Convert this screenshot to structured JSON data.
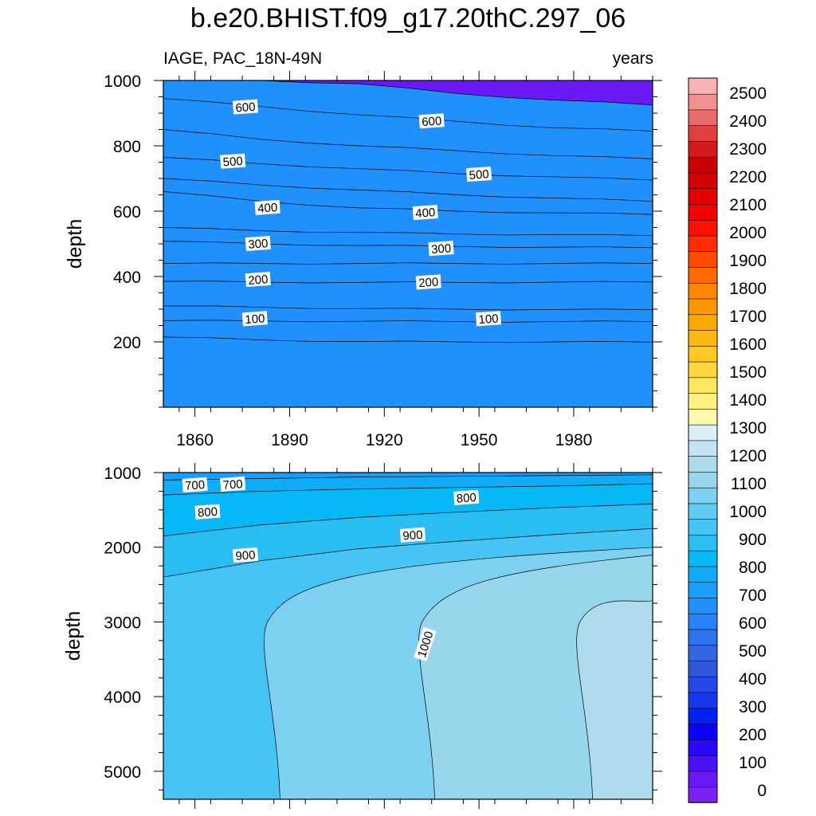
{
  "title": "b.e20.BHIST.f09_g17.20thC.297_06",
  "left_string": "IAGE, PAC_18N-49N",
  "right_string": "years",
  "chart_data": [
    {
      "type": "heatmap",
      "panel": "upper",
      "xlabel": "",
      "ylabel": "depth",
      "x_ticks": [
        1860,
        1890,
        1920,
        1950,
        1980
      ],
      "xlim": [
        1850,
        2005
      ],
      "y_ticks": [
        200,
        400,
        600,
        800,
        1000
      ],
      "ylim": [
        1000,
        0
      ],
      "contours": [
        {
          "level": 50,
          "depth": [
            215,
            206,
            201,
            200,
            200,
            199
          ]
        },
        {
          "level": 100,
          "depth": [
            265,
            264,
            263,
            262,
            262,
            262
          ]
        },
        {
          "level": 150,
          "depth": [
            310,
            306,
            302,
            300,
            299,
            298
          ]
        },
        {
          "level": 200,
          "depth": [
            385,
            383,
            382,
            382,
            383,
            383
          ]
        },
        {
          "level": 250,
          "depth": [
            440,
            440,
            440,
            440,
            440,
            440
          ]
        },
        {
          "level": 300,
          "depth": [
            508,
            500,
            495,
            492,
            490,
            488
          ]
        },
        {
          "level": 350,
          "depth": [
            550,
            540,
            535,
            530,
            528,
            525
          ]
        },
        {
          "level": 400,
          "depth": [
            660,
            630,
            610,
            600,
            595,
            590
          ]
        },
        {
          "level": 450,
          "depth": [
            700,
            680,
            665,
            650,
            640,
            630
          ]
        },
        {
          "level": 500,
          "depth": [
            765,
            745,
            730,
            715,
            705,
            695
          ]
        },
        {
          "level": 550,
          "depth": [
            850,
            820,
            800,
            785,
            770,
            760
          ]
        },
        {
          "level": 600,
          "depth": [
            945,
            920,
            895,
            875,
            855,
            845
          ]
        },
        {
          "level": 650,
          "depth": [
            1000,
            1000,
            990,
            960,
            940,
            925
          ]
        }
      ],
      "contour_labels": [
        {
          "text": "100",
          "year": 1879,
          "depth": 270
        },
        {
          "text": "100",
          "year": 1953,
          "depth": 270
        },
        {
          "text": "200",
          "year": 1880,
          "depth": 390
        },
        {
          "text": "200",
          "year": 1934,
          "depth": 382
        },
        {
          "text": "300",
          "year": 1880,
          "depth": 500
        },
        {
          "text": "300",
          "year": 1938,
          "depth": 485
        },
        {
          "text": "400",
          "year": 1883,
          "depth": 610
        },
        {
          "text": "400",
          "year": 1933,
          "depth": 595
        },
        {
          "text": "500",
          "year": 1872,
          "depth": 752
        },
        {
          "text": "500",
          "year": 1950,
          "depth": 712
        },
        {
          "text": "600",
          "year": 1876,
          "depth": 918
        },
        {
          "text": "600",
          "year": 1935,
          "depth": 875
        }
      ]
    },
    {
      "type": "heatmap",
      "panel": "lower",
      "xlabel": "",
      "ylabel": "depth",
      "x_ticks": [
        1860,
        1890,
        1920,
        1950,
        1980
      ],
      "xlim": [
        1850,
        2005
      ],
      "y_ticks": [
        1000,
        2000,
        3000,
        4000,
        5000
      ],
      "ylim": [
        1000,
        5375
      ],
      "bands": [
        {
          "level": 750,
          "depth": [
            1100,
            1080,
            1060,
            1050,
            1040,
            1030
          ]
        },
        {
          "level": 800,
          "depth": [
            1300,
            1250,
            1220,
            1200,
            1180,
            1150
          ]
        },
        {
          "level": 850,
          "depth": [
            1850,
            1700,
            1600,
            1530,
            1470,
            1420
          ]
        },
        {
          "level": 900,
          "depth": [
            2400,
            2180,
            2020,
            1920,
            1830,
            1750
          ]
        }
      ],
      "deep_contours": [
        {
          "level": 1000,
          "year_at_base": 1887,
          "top_depth": 2000
        },
        {
          "level": 1050,
          "year_at_base": 1936,
          "top_depth": 2100
        },
        {
          "level": 1100,
          "year_at_base": 1986,
          "top_depth": 2650
        }
      ],
      "contour_labels": [
        {
          "text": "700",
          "year": 1860,
          "depth": 1170
        },
        {
          "text": "700",
          "year": 1872,
          "depth": 1160
        },
        {
          "text": "800",
          "year": 1864,
          "depth": 1530
        },
        {
          "text": "800",
          "year": 1946,
          "depth": 1340
        },
        {
          "text": "900",
          "year": 1876,
          "depth": 2110
        },
        {
          "text": "900",
          "year": 1929,
          "depth": 1840
        },
        {
          "text": "1000",
          "year": 1933,
          "depth": 3300
        }
      ]
    }
  ],
  "colorbar": {
    "labels": [
      "0",
      "100",
      "200",
      "300",
      "400",
      "500",
      "600",
      "700",
      "800",
      "900",
      "1000",
      "1100",
      "1200",
      "1300",
      "1400",
      "1500",
      "1600",
      "1700",
      "1800",
      "1900",
      "2000",
      "2100",
      "2200",
      "2300",
      "2400",
      "2500"
    ],
    "colors": [
      "#7b22f0",
      "#6a18f4",
      "#4a10f8",
      "#2a08fa",
      "#0a02fc",
      "#0020f4",
      "#1838ee",
      "#2848e4",
      "#3056dc",
      "#3466e4",
      "#2e74ee",
      "#2882f8",
      "#2090fc",
      "#1a9efc",
      "#10acf8",
      "#06b8f6",
      "#28bef2",
      "#46c4f4",
      "#62caf2",
      "#7ed0f0",
      "#98d6ee",
      "#aedcee",
      "#c2e4f2",
      "#d8eef8",
      "#fff8b0",
      "#fff080",
      "#ffe860",
      "#ffd840",
      "#ffc820",
      "#ffb810",
      "#ffa800",
      "#ff9800",
      "#ff8600",
      "#ff6a00",
      "#ff4c00",
      "#ff2e00",
      "#ff1000",
      "#f40000",
      "#e40000",
      "#d40000",
      "#c80000",
      "#d41c1c",
      "#e04040",
      "#e86c6c",
      "#f09090",
      "#f8b4b4"
    ]
  }
}
